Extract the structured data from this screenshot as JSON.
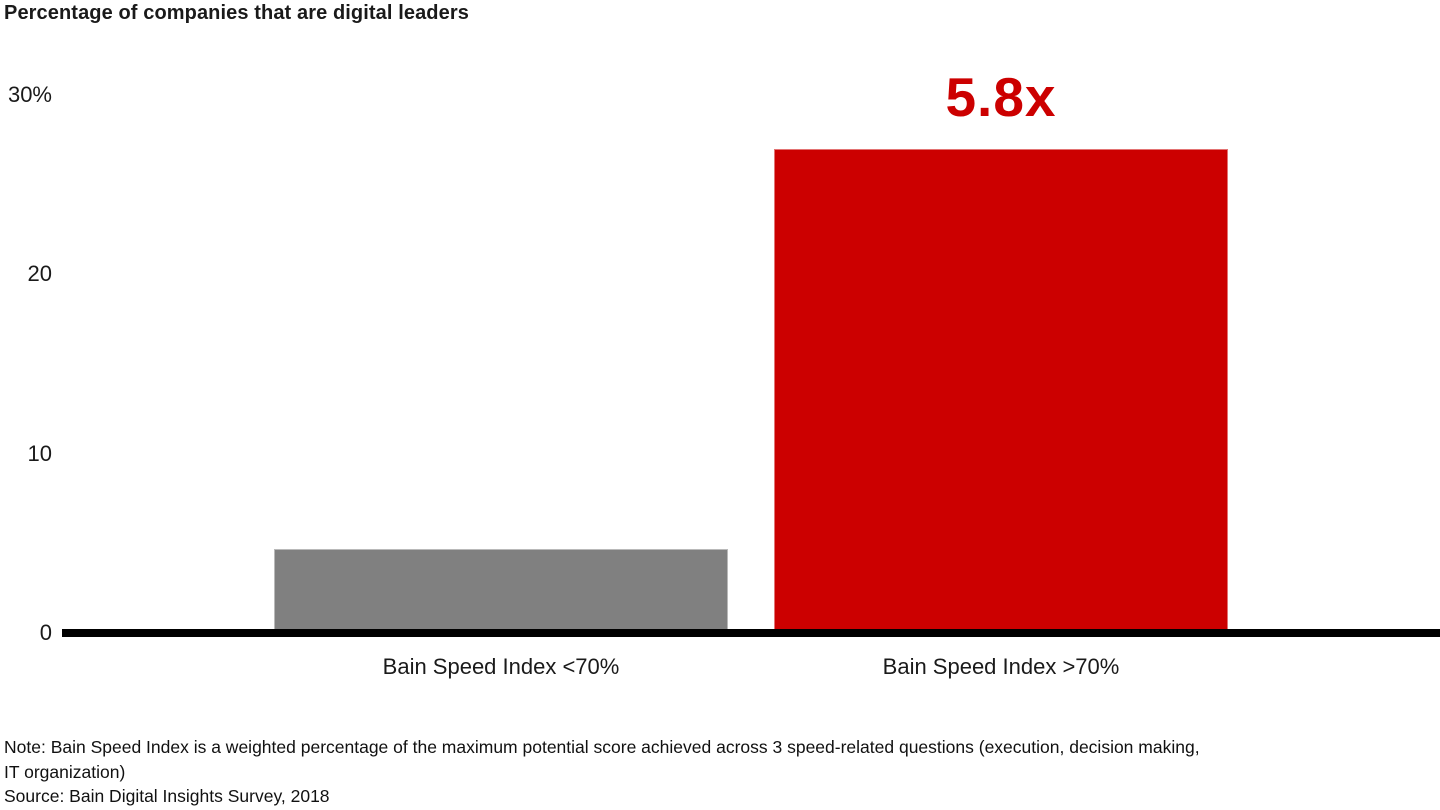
{
  "chart_data": {
    "type": "bar",
    "title": "Percentage of companies that are digital leaders",
    "categories": [
      "Bain Speed Index <70%",
      "Bain Speed Index >70%"
    ],
    "values": [
      4.7,
      27
    ],
    "bar_colors": [
      "#808080",
      "#CC0000"
    ],
    "annotation": {
      "text": "5.8x",
      "bar_index": 1,
      "color": "#CC0000"
    },
    "xlabel": "",
    "ylabel": "",
    "ylim": [
      0,
      30
    ],
    "yticks": [
      0,
      10,
      20,
      30
    ],
    "ytick_labels": [
      "0",
      "10",
      "20",
      "30%"
    ],
    "grid": false,
    "legend": "none",
    "axis_color": "#000000",
    "note_lines": [
      "Note: Bain Speed Index is a weighted percentage of the maximum potential score achieved across 3 speed-related questions (execution, decision making,",
      "IT organization)"
    ],
    "source": "Source: Bain Digital Insights Survey, 2018"
  }
}
